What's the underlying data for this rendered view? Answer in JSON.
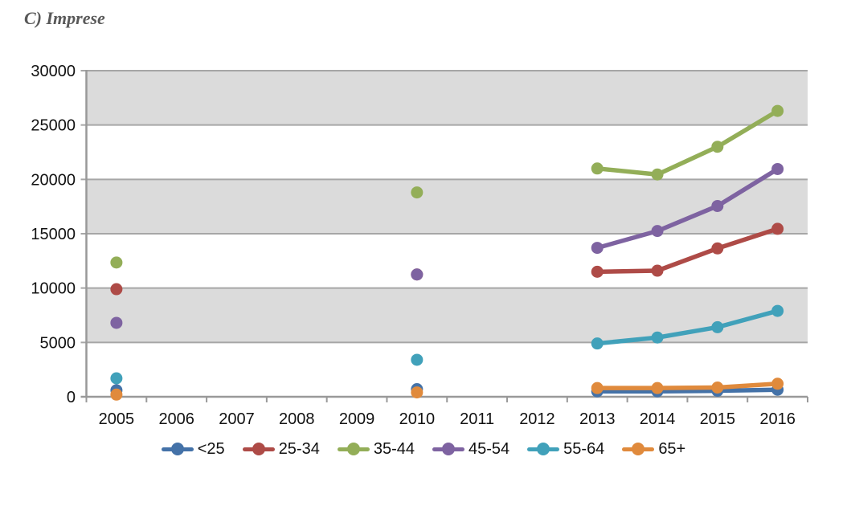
{
  "title": "C) Imprese",
  "chart_data": {
    "type": "line",
    "categories": [
      "2005",
      "2006",
      "2007",
      "2008",
      "2009",
      "2010",
      "2011",
      "2012",
      "2013",
      "2014",
      "2015",
      "2016"
    ],
    "series": [
      {
        "name": "<25",
        "color": "#4472A8",
        "values": [
          600,
          null,
          null,
          null,
          null,
          700,
          null,
          null,
          500,
          500,
          550,
          650
        ]
      },
      {
        "name": "25-34",
        "color": "#AE4B47",
        "values": [
          9900,
          null,
          null,
          null,
          null,
          11250,
          null,
          null,
          11500,
          11600,
          13650,
          15450
        ]
      },
      {
        "name": "35-44",
        "color": "#93AE58",
        "values": [
          12350,
          null,
          null,
          null,
          null,
          18800,
          null,
          null,
          21000,
          20450,
          23000,
          26300
        ]
      },
      {
        "name": "45-54",
        "color": "#7E63A1",
        "values": [
          6800,
          null,
          null,
          null,
          null,
          11250,
          null,
          null,
          13700,
          15250,
          17550,
          20950
        ]
      },
      {
        "name": "55-64",
        "color": "#41A1BA",
        "values": [
          1700,
          null,
          null,
          null,
          null,
          3400,
          null,
          null,
          4900,
          5450,
          6400,
          7900
        ]
      },
      {
        "name": "65+",
        "color": "#E08A3C",
        "values": [
          200,
          null,
          null,
          null,
          null,
          400,
          null,
          null,
          800,
          800,
          850,
          1200
        ]
      }
    ],
    "xlabel": "",
    "ylabel": "",
    "ylim": [
      0,
      30000
    ],
    "yticks": [
      0,
      5000,
      10000,
      15000,
      20000,
      25000,
      30000
    ],
    "grid": true,
    "shaded_bands": [
      "5000-10000",
      "15000-20000",
      "25000-30000"
    ],
    "band_fill": "#DBDBDB",
    "gridline_color": "#A6A6A6",
    "axis_color": "#999999",
    "tick_label_color": "#111111",
    "legend_position": "bottom"
  }
}
